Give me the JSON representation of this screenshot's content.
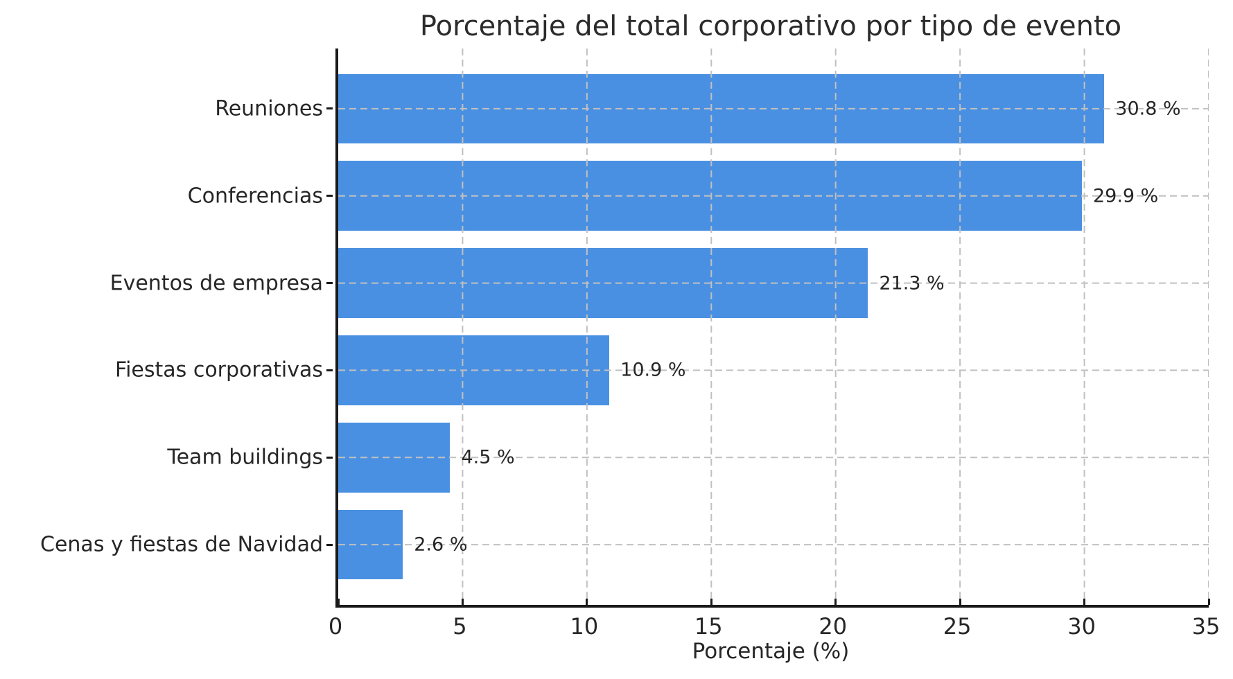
{
  "chart_data": {
    "type": "bar",
    "orientation": "horizontal",
    "title": "Porcentaje del total corporativo por tipo de evento",
    "xlabel": "Porcentaje (%)",
    "ylabel": "",
    "categories": [
      "Reuniones",
      "Conferencias",
      "Eventos de empresa",
      "Fiestas corporativas",
      "Team buildings",
      "Cenas y fiestas de Navidad"
    ],
    "values": [
      30.8,
      29.9,
      21.3,
      10.9,
      4.5,
      2.6
    ],
    "value_labels": [
      "30.8 %",
      "29.9 %",
      "21.3 %",
      "10.9 %",
      "4.5 %",
      "2.6 %"
    ],
    "xlim": [
      0,
      35
    ],
    "x_ticks": [
      0,
      5,
      10,
      15,
      20,
      25,
      30,
      35
    ],
    "grid": {
      "visible": true,
      "style": "dashed",
      "axes": "both"
    },
    "legend": "none",
    "colors": {
      "bar": "#4a90e2",
      "grid": "#c0c0c0",
      "spine": "#1a1a1a",
      "text": "#262626",
      "background": "#ffffff"
    }
  }
}
